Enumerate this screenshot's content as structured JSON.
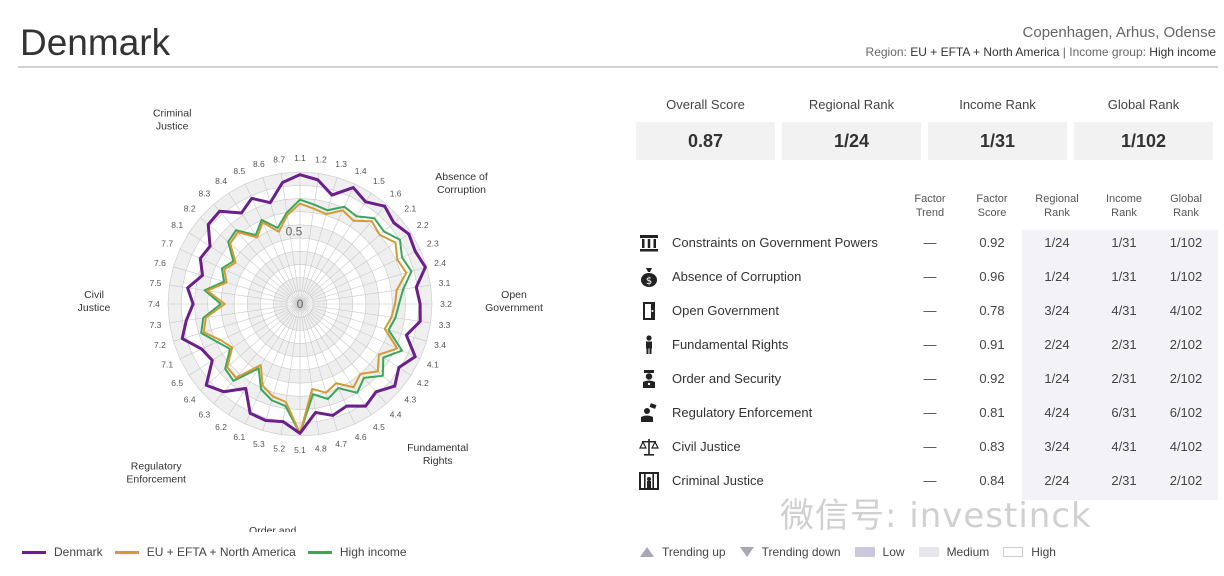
{
  "header": {
    "country": "Denmark",
    "cities": "Copenhagen, Arhus, Odense",
    "region_label": "Region:",
    "region_value": "EU + EFTA + North America",
    "separator": "|",
    "income_label": "Income group:",
    "income_value": "High income"
  },
  "summary": [
    {
      "label": "Overall Score",
      "value": "0.87"
    },
    {
      "label": "Regional Rank",
      "value": "1/24"
    },
    {
      "label": "Income Rank",
      "value": "1/31"
    },
    {
      "label": "Global Rank",
      "value": "1/102"
    }
  ],
  "table": {
    "headers": [
      {
        "line1": "Factor",
        "line2": "Trend"
      },
      {
        "line1": "Factor",
        "line2": "Score"
      },
      {
        "line1": "Regional",
        "line2": "Rank"
      },
      {
        "line1": "Income",
        "line2": "Rank"
      },
      {
        "line1": "Global",
        "line2": "Rank"
      }
    ],
    "rows": [
      {
        "icon": "columns-icon",
        "name": "Constraints on Government Powers",
        "trend": "—",
        "score": "0.92",
        "regional": "1/24",
        "income": "1/31",
        "global": "1/102"
      },
      {
        "icon": "money-bag-icon",
        "name": "Absence of Corruption",
        "trend": "—",
        "score": "0.96",
        "regional": "1/24",
        "income": "1/31",
        "global": "1/102"
      },
      {
        "icon": "open-door-icon",
        "name": "Open Government",
        "trend": "—",
        "score": "0.78",
        "regional": "3/24",
        "income": "4/31",
        "global": "4/102"
      },
      {
        "icon": "person-icon",
        "name": "Fundamental Rights",
        "trend": "—",
        "score": "0.91",
        "regional": "2/24",
        "income": "2/31",
        "global": "2/102"
      },
      {
        "icon": "police-officer-icon",
        "name": "Order and Security",
        "trend": "—",
        "score": "0.92",
        "regional": "1/24",
        "income": "2/31",
        "global": "2/102"
      },
      {
        "icon": "regulator-icon",
        "name": "Regulatory Enforcement",
        "trend": "—",
        "score": "0.81",
        "regional": "4/24",
        "income": "6/31",
        "global": "6/102"
      },
      {
        "icon": "scales-icon",
        "name": "Civil Justice",
        "trend": "—",
        "score": "0.83",
        "regional": "3/24",
        "income": "4/31",
        "global": "4/102"
      },
      {
        "icon": "jail-icon",
        "name": "Criminal Justice",
        "trend": "—",
        "score": "0.84",
        "regional": "2/24",
        "income": "2/31",
        "global": "2/102"
      }
    ]
  },
  "bottom_legend": {
    "trending_up": "Trending up",
    "trending_down": "Trending down",
    "low": "Low",
    "medium": "Medium",
    "high": "High"
  },
  "watermark": "微信号: investinck",
  "colors": {
    "denmark": "#6b1e8c",
    "region": "#d49a35",
    "income": "#3aa65a",
    "grid": "#c8c8c8",
    "shade": "#efefef"
  },
  "chart_data": {
    "type": "radar",
    "ring_labels": [
      "0",
      "0.5"
    ],
    "rlim": [
      0,
      1
    ],
    "axes": [
      "1.1",
      "1.2",
      "1.3",
      "1.4",
      "1.5",
      "1.6",
      "2.1",
      "2.2",
      "2.3",
      "2.4",
      "3.1",
      "3.2",
      "3.3",
      "3.4",
      "4.1",
      "4.2",
      "4.3",
      "4.4",
      "4.5",
      "4.6",
      "4.7",
      "4.8",
      "5.1",
      "5.2",
      "5.3",
      "6.1",
      "6.2",
      "6.3",
      "6.4",
      "6.5",
      "7.1",
      "7.2",
      "7.3",
      "7.4",
      "7.5",
      "7.6",
      "7.7",
      "8.1",
      "8.2",
      "8.3",
      "8.4",
      "8.5",
      "8.6",
      "8.7"
    ],
    "factor_labels": [
      {
        "text": [
          "Constraints on",
          "Government",
          "Powers"
        ],
        "axis": "1.3"
      },
      {
        "text": [
          "Absence of",
          "Corruption"
        ],
        "axis": "2.2"
      },
      {
        "text": [
          "Open",
          "Government"
        ],
        "axis": "3.2"
      },
      {
        "text": [
          "Fundamental",
          "Rights"
        ],
        "axis": "4.4"
      },
      {
        "text": [
          "Order and",
          "Security"
        ],
        "axis": "5.2"
      },
      {
        "text": [
          "Regulatory",
          "Enforcement"
        ],
        "axis": "6.2"
      },
      {
        "text": [
          "Civil",
          "Justice"
        ],
        "axis": "7.4"
      },
      {
        "text": [
          "Criminal",
          "Justice"
        ],
        "axis": "8.4"
      }
    ],
    "series": [
      {
        "name": "Denmark",
        "values": [
          0.98,
          0.95,
          0.86,
          0.97,
          0.92,
          0.98,
          0.94,
          0.98,
          0.96,
          0.99,
          0.89,
          0.91,
          0.92,
          0.84,
          0.96,
          0.89,
          0.95,
          0.88,
          0.92,
          0.85,
          0.88,
          0.83,
          0.98,
          0.9,
          0.92,
          0.91,
          0.76,
          0.88,
          0.94,
          0.79,
          0.82,
          0.93,
          0.87,
          0.81,
          0.86,
          0.77,
          0.83,
          0.81,
          0.92,
          0.93,
          0.82,
          0.88,
          0.8,
          0.93
        ]
      },
      {
        "name": "EU + EFTA + North America",
        "values": [
          0.76,
          0.73,
          0.71,
          0.78,
          0.75,
          0.83,
          0.8,
          0.86,
          0.81,
          0.84,
          0.74,
          0.72,
          0.7,
          0.67,
          0.81,
          0.71,
          0.78,
          0.7,
          0.75,
          0.66,
          0.7,
          0.65,
          0.98,
          0.75,
          0.73,
          0.68,
          0.55,
          0.74,
          0.73,
          0.61,
          0.66,
          0.76,
          0.72,
          0.57,
          0.71,
          0.58,
          0.63,
          0.58,
          0.7,
          0.72,
          0.6,
          0.68,
          0.57,
          0.68
        ]
      },
      {
        "name": "High income",
        "values": [
          0.79,
          0.76,
          0.74,
          0.81,
          0.79,
          0.86,
          0.84,
          0.9,
          0.85,
          0.88,
          0.79,
          0.75,
          0.73,
          0.7,
          0.85,
          0.75,
          0.83,
          0.74,
          0.8,
          0.7,
          0.75,
          0.69,
          0.98,
          0.78,
          0.76,
          0.71,
          0.58,
          0.77,
          0.75,
          0.63,
          0.69,
          0.78,
          0.74,
          0.6,
          0.73,
          0.6,
          0.65,
          0.6,
          0.72,
          0.74,
          0.62,
          0.7,
          0.6,
          0.7
        ]
      }
    ],
    "legend_position": "bottom-left"
  }
}
